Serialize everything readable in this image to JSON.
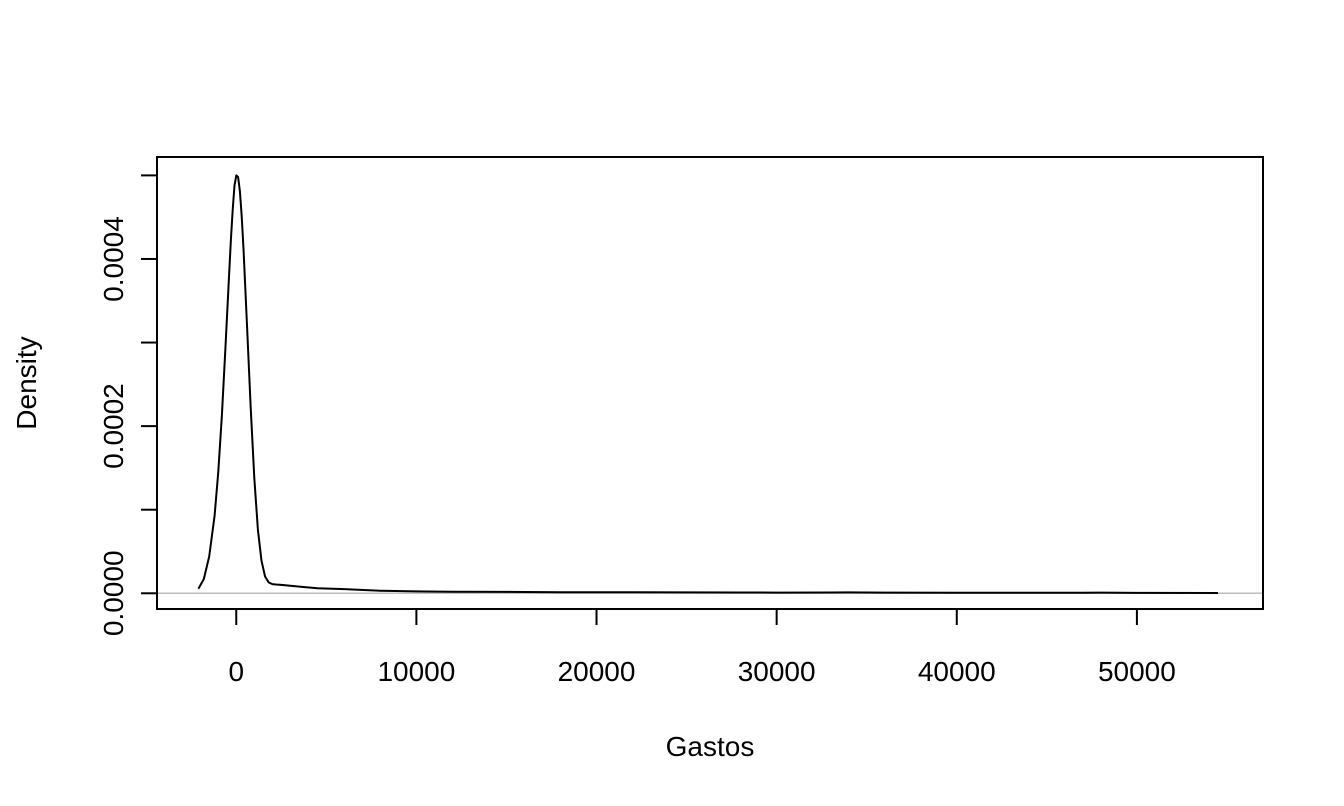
{
  "chart_data": {
    "type": "line",
    "title": "",
    "xlabel": "Gastos",
    "ylabel": "Density",
    "xlim": [
      -4400,
      57000
    ],
    "ylim": [
      -1.88e-05,
      0.000522
    ],
    "x_ticks": [
      0,
      10000,
      20000,
      30000,
      40000,
      50000
    ],
    "x_tick_labels": [
      "0",
      "10000",
      "20000",
      "30000",
      "40000",
      "50000"
    ],
    "y_ticks": [
      0.0,
      0.0001,
      0.0002,
      0.0003,
      0.0004,
      0.0005
    ],
    "y_tick_labels": [
      "0.0000",
      "",
      "0.0002",
      "",
      "0.0004",
      ""
    ],
    "baseline": 0,
    "grid": false,
    "series": [
      {
        "color": "#000000",
        "x": [
          -2100,
          -1800,
          -1500,
          -1200,
          -1000,
          -800,
          -600,
          -400,
          -300,
          -200,
          -100,
          0,
          100,
          200,
          300,
          400,
          600,
          800,
          1000,
          1200,
          1400,
          1600,
          1800,
          2000,
          2200,
          2500,
          3000,
          3500,
          4500,
          6000,
          8000,
          10000,
          12000,
          15000,
          18000,
          20000,
          22000,
          25000,
          28000,
          30000,
          33000,
          34000,
          36000,
          40000,
          44000,
          47000,
          48000,
          50000,
          54500
        ],
        "y": [
          5.5e-06,
          1.7e-05,
          4.4e-05,
          9.3e-05,
          0.000144,
          0.000211,
          0.000293,
          0.000381,
          0.000423,
          0.000459,
          0.000488,
          0.0005,
          0.000498,
          0.000481,
          0.000451,
          0.000412,
          0.000318,
          0.000222,
          0.000138,
          7.6e-05,
          3.9e-05,
          2e-05,
          1.3e-05,
          1.1e-05,
          1.05e-05,
          1e-05,
          9e-06,
          8e-06,
          6e-06,
          5e-06,
          3e-06,
          2.2e-06,
          1.8e-06,
          1.6e-06,
          1.3e-06,
          1.2e-06,
          1.2e-06,
          1.1e-06,
          9e-07,
          8e-07,
          1e-06,
          1.1e-06,
          8e-07,
          6e-07,
          6e-07,
          7e-07,
          8e-07,
          5e-07,
          4e-07
        ]
      }
    ]
  }
}
